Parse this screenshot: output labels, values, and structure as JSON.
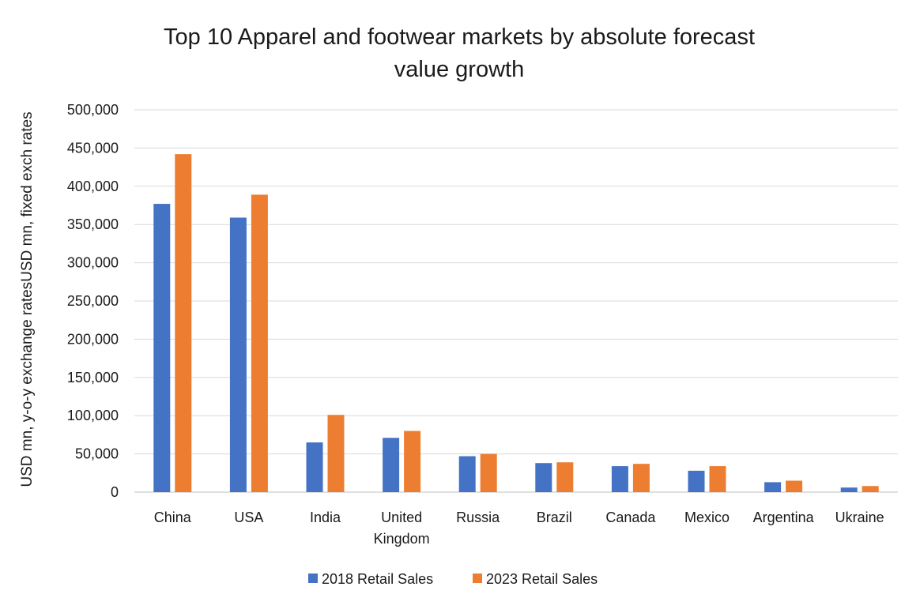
{
  "chart_data": {
    "type": "bar",
    "title_lines": [
      "Top 10 Apparel and footwear markets by absolute forecast",
      "value growth"
    ],
    "ylabel": "USD mn, y-o-y exchange ratesUSD mn, fixed  exch rates",
    "xlabel": "",
    "categories": [
      "China",
      "USA",
      "India",
      "United Kingdom",
      "Russia",
      "Brazil",
      "Canada",
      "Mexico",
      "Argentina",
      "Ukraine"
    ],
    "category_lines": [
      [
        "China"
      ],
      [
        "USA"
      ],
      [
        "India"
      ],
      [
        "United",
        "Kingdom"
      ],
      [
        "Russia"
      ],
      [
        "Brazil"
      ],
      [
        "Canada"
      ],
      [
        "Mexico"
      ],
      [
        "Argentina"
      ],
      [
        "Ukraine"
      ]
    ],
    "series": [
      {
        "name": "2018 Retail Sales",
        "color": "#4472c4",
        "values": [
          377000,
          359000,
          65000,
          71000,
          47000,
          38000,
          34000,
          28000,
          13000,
          6000
        ]
      },
      {
        "name": "2023 Retail Sales",
        "color": "#ed7d31",
        "values": [
          442000,
          389000,
          101000,
          80000,
          50000,
          39000,
          37000,
          34000,
          15000,
          8000
        ]
      }
    ],
    "ylim": [
      0,
      500000
    ],
    "yticks": [
      "0",
      "50,000",
      "100,000",
      "150,000",
      "200,000",
      "250,000",
      "300,000",
      "350,000",
      "400,000",
      "450,000",
      "500,000"
    ],
    "ytick_values": [
      0,
      50000,
      100000,
      150000,
      200000,
      250000,
      300000,
      350000,
      400000,
      450000,
      500000
    ],
    "grid": true,
    "gridline_color": "#d9d9d9",
    "legend_position": "bottom"
  }
}
